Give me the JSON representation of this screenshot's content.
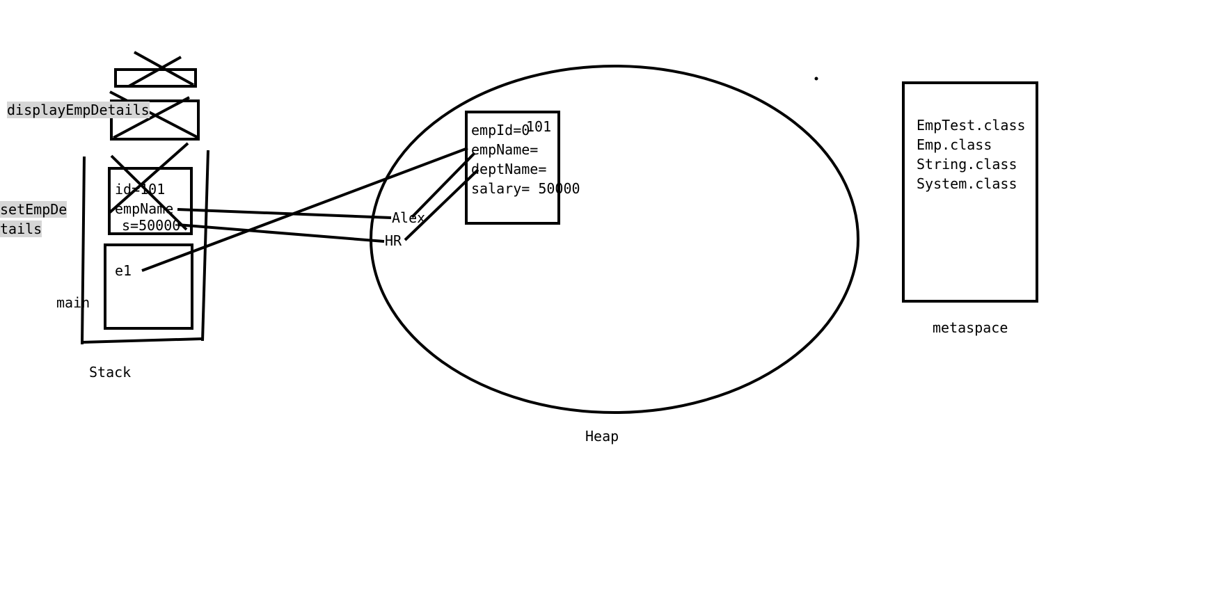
{
  "stack": {
    "label": "Stack",
    "frames": {
      "display_label": "displayEmpDetails",
      "set_label_line1": "setEmpDe",
      "set_label_line2": "tails",
      "main_label": "main"
    },
    "set_frame_vars": [
      "id=101",
      "empName",
      "s=50000"
    ],
    "main_frame_var": "e1"
  },
  "heap": {
    "label": "Heap",
    "strings": [
      "Alex",
      "HR"
    ],
    "object_fields": [
      "empId=0",
      "empName=",
      "deptName=",
      "salary= 50000"
    ],
    "overwrite_value": "101"
  },
  "metaspace": {
    "label": "metaspace",
    "classes": [
      "EmpTest.class",
      "Emp.class",
      "String.class",
      "System.class"
    ]
  }
}
